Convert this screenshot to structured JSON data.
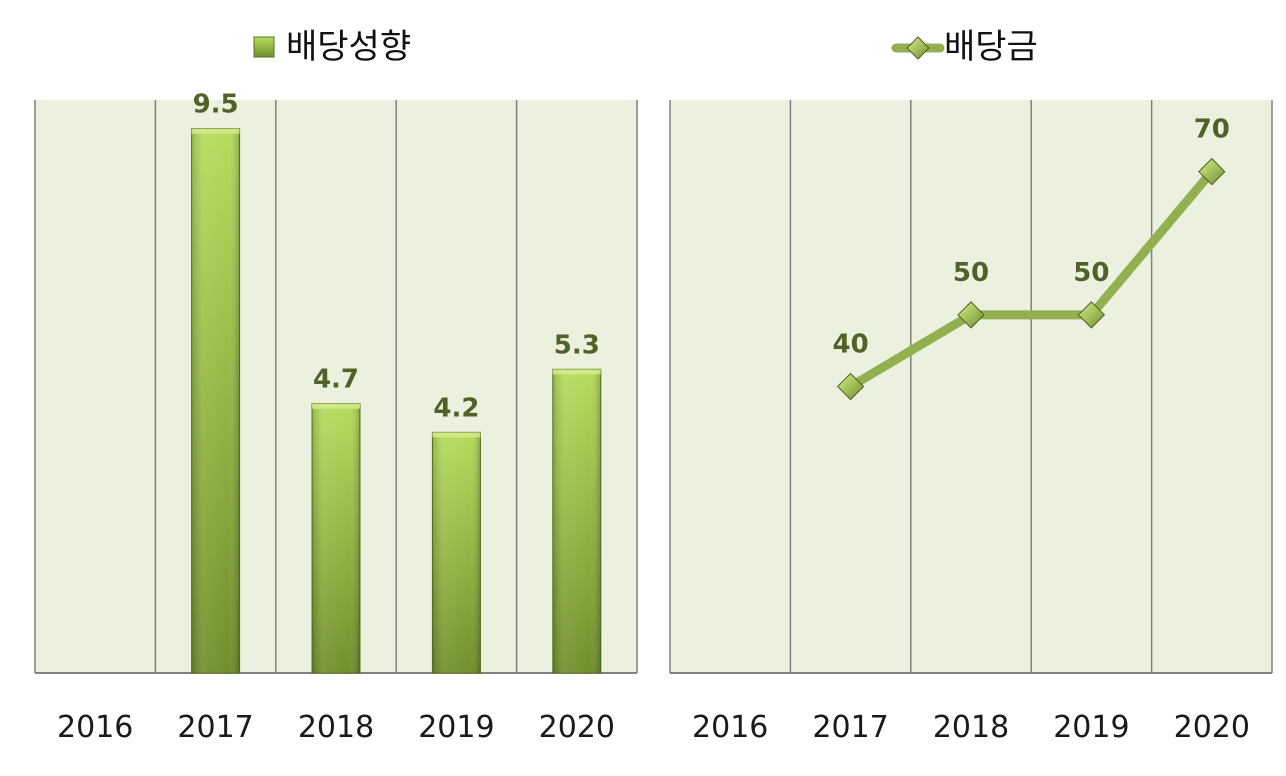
{
  "chart_data": [
    {
      "type": "bar",
      "categories": [
        "2016",
        "2017",
        "2018",
        "2019",
        "2020"
      ],
      "series": [
        {
          "name": "배당성향",
          "values": [
            null,
            9.5,
            4.7,
            4.2,
            5.3
          ]
        }
      ],
      "data_labels": [
        "",
        "9.5",
        "4.7",
        "4.2",
        "5.3"
      ],
      "ylim": [
        0,
        10
      ],
      "grid": "vertical",
      "legend_position": "top"
    },
    {
      "type": "line",
      "categories": [
        "2016",
        "2017",
        "2018",
        "2019",
        "2020"
      ],
      "series": [
        {
          "name": "배당금",
          "values": [
            null,
            40,
            50,
            50,
            70
          ],
          "marker": "diamond"
        }
      ],
      "data_labels": [
        "",
        "40",
        "50",
        "50",
        "70"
      ],
      "ylim": [
        0,
        80
      ],
      "grid": "vertical",
      "legend_position": "top"
    }
  ],
  "colors": {
    "plot_bg": "#ebf1de",
    "grid": "#808080",
    "bar_light": "#b5dc5c",
    "bar_dark": "#6f8f2b",
    "line": "#92b050",
    "label": "#4f6228"
  }
}
